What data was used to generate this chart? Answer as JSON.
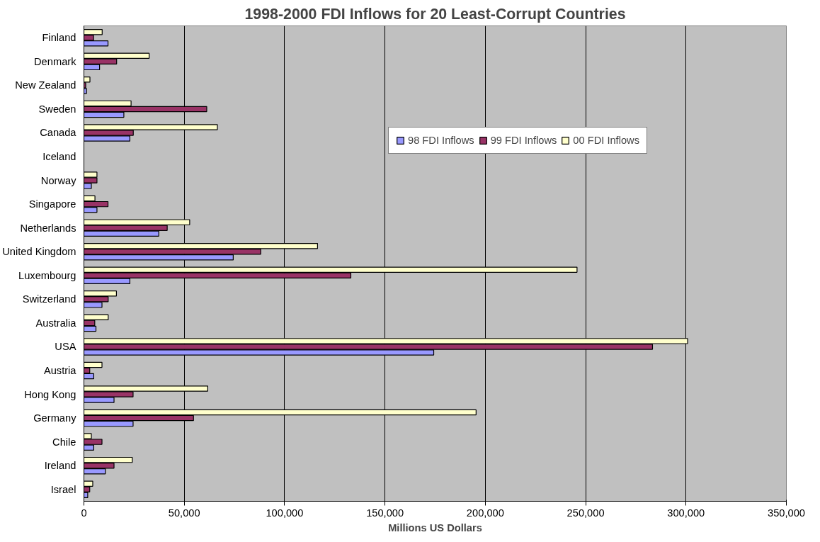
{
  "chart_data": {
    "type": "bar",
    "orientation": "horizontal",
    "title": "1998-2000 FDI Inflows for 20 Least-Corrupt Countries",
    "xlabel": "Millions US Dollars",
    "categories": [
      "Finland",
      "Denmark",
      "New Zealand",
      "Sweden",
      "Canada",
      "Iceland",
      "Norway",
      "Singapore",
      "Netherlands",
      "United Kingdom",
      "Luxembourg",
      "Switzerland",
      "Australia",
      "USA",
      "Austria",
      "Hong Kong",
      "Germany",
      "Chile",
      "Ireland",
      "Israel"
    ],
    "series": [
      {
        "name": "98 FDI Inflows",
        "color": "#9999ff",
        "values": [
          12000,
          7800,
          1300,
          19900,
          22900,
          null,
          3700,
          6500,
          37300,
          74400,
          22900,
          9000,
          6000,
          174300,
          4900,
          15000,
          24500,
          4900,
          10700,
          1900
        ]
      },
      {
        "name": "99 FDI Inflows",
        "color": "#993366",
        "values": [
          4800,
          16300,
          900,
          61200,
          24600,
          null,
          6500,
          12000,
          41500,
          88100,
          133000,
          12100,
          5400,
          283300,
          2900,
          24500,
          54600,
          9000,
          15000,
          2900
        ]
      },
      {
        "name": "00 FDI Inflows",
        "color": "#ffffcc",
        "values": [
          9100,
          32500,
          3000,
          23500,
          66500,
          null,
          6500,
          5500,
          52700,
          116400,
          245700,
          16200,
          12100,
          300800,
          9000,
          61700,
          195400,
          3700,
          24100,
          4400
        ]
      }
    ],
    "xlim": [
      0,
      350000
    ],
    "xticks": [
      0,
      {
        "value": 50000,
        "label": "50,000"
      },
      {
        "value": 100000,
        "label": "100,000"
      },
      {
        "value": 150000,
        "label": "150,000"
      },
      {
        "value": 200000,
        "label": "200,000"
      },
      {
        "value": 250000,
        "label": "250,000"
      },
      {
        "value": 300000,
        "label": "300,000"
      },
      {
        "value": 350000,
        "label": "350,000"
      }
    ],
    "grid": "x",
    "legend": "top right"
  }
}
